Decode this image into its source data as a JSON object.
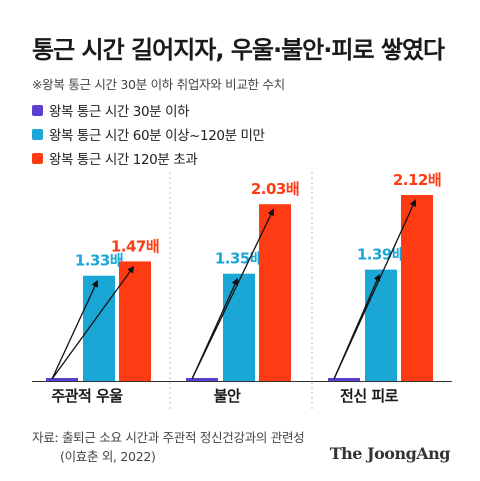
{
  "title": "통근 시간 길어지자, 우울·불안·피로 쌓였다",
  "note": "※왕복 통근 시간 30분 이하 취업자와 비교한 수치",
  "source_line1": "자료: 출퇴근 소요 시간과 주관적 정신건강과의 관련성",
  "source_line2": "(이효춘 외, 2022)",
  "logo": "The JoongAng",
  "colors": {
    "series1": "#5b3fd0",
    "series2": "#1aa7d6",
    "series3": "#ff3b14",
    "label2": "#1aa7d6",
    "label3": "#ff3b14"
  },
  "chart_data": {
    "type": "bar",
    "categories": [
      "주관적 우울",
      "불안",
      "전신 피로"
    ],
    "series": [
      {
        "name": "왕복 통근 시간 30분 이하",
        "values": [
          1,
          1,
          1
        ],
        "labels": [
          "",
          "",
          ""
        ]
      },
      {
        "name": "왕복 통근 시간 60분 이상~120분 미만",
        "values": [
          1.33,
          1.35,
          1.39
        ],
        "labels": [
          "1.33배",
          "1.35배",
          "1.39배"
        ]
      },
      {
        "name": "왕복 통근 시간 120분 초과",
        "values": [
          1.47,
          2.03,
          2.12
        ],
        "labels": [
          "1.47배",
          "2.03배",
          "2.12배"
        ]
      }
    ],
    "arrows": true,
    "grid": false
  }
}
